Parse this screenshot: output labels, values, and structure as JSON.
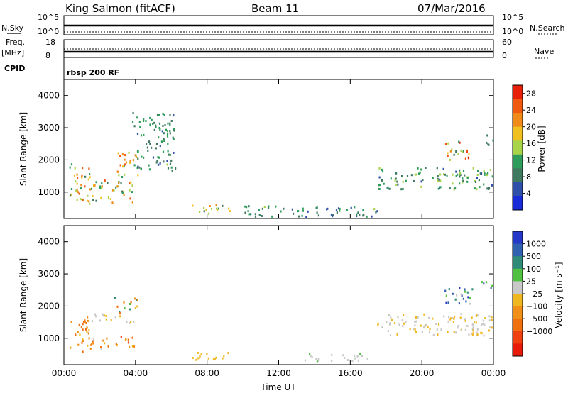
{
  "header": {
    "station": "King Salmon (fitACF)",
    "beam": "Beam 11",
    "date": "07/Mar/2016"
  },
  "status_panels": {
    "nsky_label": "N.Sky",
    "nsearch_label": "N.Search",
    "freq_label": "Freq.",
    "freq_unit": "[MHz]",
    "nave_label": "Nave",
    "cpid_label": "CPID",
    "cpid_value": "rbsp 200 RF",
    "noise_ticks_left": [
      "10^5",
      "10^0"
    ],
    "noise_ticks_right": [
      "10^5",
      "10^0"
    ],
    "freq_ticks": [
      "18",
      "8"
    ],
    "nave_ticks": [
      "60",
      "0"
    ]
  },
  "colors": {
    "power_scale": [
      "#1a2bd8",
      "#2f4fa8",
      "#3f7a60",
      "#2e9c5a",
      "#a8d44a",
      "#f0c020",
      "#f08a18",
      "#f05a10",
      "#e8200a"
    ],
    "velocity_scale": [
      "#2638c8",
      "#3060b0",
      "#2f8a78",
      "#4fc040",
      "#c8c8c8",
      "#f0b820",
      "#f09018",
      "#f07010",
      "#f04010",
      "#e81a0a"
    ]
  },
  "chart_data": [
    {
      "type": "heatmap",
      "name": "power",
      "ylabel": "Slant Range [km]",
      "yticks": [
        "1000",
        "2000",
        "3000",
        "4000"
      ],
      "ylim": [
        180,
        4500
      ],
      "xticks": [
        "00:00",
        "04:00",
        "08:00",
        "12:00",
        "16:00",
        "20:00",
        "00:00"
      ],
      "xlim": [
        0,
        24
      ],
      "colorbar": {
        "label": "Power [dB]",
        "ticks": [
          "28",
          "24",
          "20",
          "16",
          "12",
          "8",
          "4"
        ],
        "range": [
          0,
          30
        ]
      },
      "features": [
        {
          "t": [
            0.3,
            1.5
          ],
          "r": [
            600,
            1900
          ],
          "v": [
            8,
            26
          ]
        },
        {
          "t": [
            1.5,
            3.9
          ],
          "r": [
            700,
            1400
          ],
          "v": [
            8,
            24
          ]
        },
        {
          "t": [
            2.8,
            4.1
          ],
          "r": [
            1500,
            2300
          ],
          "v": [
            12,
            26
          ]
        },
        {
          "t": [
            3.8,
            6.2
          ],
          "r": [
            1700,
            3500
          ],
          "v": [
            6,
            14
          ]
        },
        {
          "t": [
            7.1,
            9.3
          ],
          "r": [
            350,
            650
          ],
          "v": [
            8,
            22
          ]
        },
        {
          "t": [
            10.0,
            17.5
          ],
          "r": [
            250,
            600
          ],
          "v": [
            4,
            14
          ]
        },
        {
          "t": [
            17.5,
            24.0
          ],
          "r": [
            1100,
            1800
          ],
          "v": [
            6,
            16
          ]
        },
        {
          "t": [
            21.2,
            22.8
          ],
          "r": [
            2000,
            2600
          ],
          "v": [
            6,
            28
          ]
        },
        {
          "t": [
            23.3,
            24.0
          ],
          "r": [
            2500,
            2800
          ],
          "v": [
            6,
            14
          ]
        }
      ]
    },
    {
      "type": "heatmap",
      "name": "velocity",
      "ylabel": "Slant Range [km]",
      "yticks": [
        "1000",
        "2000",
        "3000",
        "4000"
      ],
      "ylim": [
        180,
        4500
      ],
      "xticks": [
        "00:00",
        "04:00",
        "08:00",
        "12:00",
        "16:00",
        "20:00",
        "00:00"
      ],
      "xlim": [
        0,
        24
      ],
      "xlabel": "Time UT",
      "colorbar": {
        "label": "Velocity [m s⁻¹]",
        "ticks": [
          "1000",
          "500",
          "100",
          "25",
          "−25",
          "−100",
          "−500",
          "−1000"
        ],
        "range": [
          -1000,
          1000
        ]
      },
      "features": [
        {
          "t": [
            0.3,
            1.5
          ],
          "r": [
            600,
            1700
          ],
          "v": [
            -600,
            -100
          ]
        },
        {
          "t": [
            1.5,
            3.9
          ],
          "r": [
            700,
            1100
          ],
          "v": [
            -700,
            50
          ]
        },
        {
          "t": [
            1.5,
            3.9
          ],
          "r": [
            1500,
            1800
          ],
          "v": [
            -25,
            25
          ]
        },
        {
          "t": [
            2.8,
            4.1
          ],
          "r": [
            1800,
            2300
          ],
          "v": [
            -600,
            600
          ]
        },
        {
          "t": [
            7.1,
            9.3
          ],
          "r": [
            350,
            650
          ],
          "v": [
            -150,
            -40
          ]
        },
        {
          "t": [
            13.0,
            17.0
          ],
          "r": [
            300,
            550
          ],
          "v": [
            30,
            250
          ]
        },
        {
          "t": [
            17.5,
            24.0
          ],
          "r": [
            1100,
            1800
          ],
          "v": [
            -25,
            25
          ]
        },
        {
          "t": [
            21.2,
            22.8
          ],
          "r": [
            2000,
            2600
          ],
          "v": [
            100,
            900
          ]
        },
        {
          "t": [
            23.3,
            24.0
          ],
          "r": [
            2500,
            2800
          ],
          "v": [
            100,
            900
          ]
        }
      ]
    }
  ]
}
